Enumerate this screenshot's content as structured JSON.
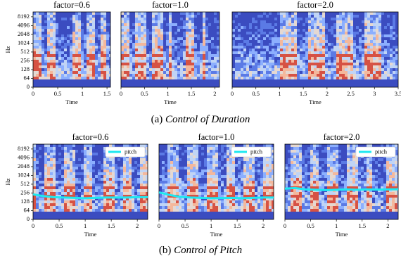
{
  "captions": [
    {
      "label": "(a)",
      "text": "Control of Duration"
    },
    {
      "label": "(b)",
      "text": "Control of Pitch"
    }
  ],
  "chart_data": [
    {
      "type": "spectrogram",
      "title": "factor=0.6",
      "xlabel": "Time",
      "ylabel": "Hz",
      "xlim": [
        0,
        1.57
      ],
      "xticks": [
        0,
        0.5,
        1,
        1.5
      ],
      "ylim": [
        0,
        12000
      ],
      "yticks": [
        0,
        64,
        128,
        256,
        512,
        1024,
        2048,
        4096,
        8192
      ],
      "yscale": "symlog",
      "linthresh": 64
    },
    {
      "type": "spectrogram",
      "title": "factor=1.0",
      "xlabel": "Time",
      "xlim": [
        0,
        2.1
      ],
      "xticks": [
        0,
        0.5,
        1,
        1.5,
        2
      ],
      "ylim": [
        0,
        12000
      ],
      "yscale": "symlog",
      "linthresh": 64
    },
    {
      "type": "spectrogram",
      "title": "factor=2.0",
      "xlabel": "Time",
      "xlim": [
        0,
        3.5
      ],
      "xticks": [
        0,
        0.5,
        1,
        1.5,
        2,
        2.5,
        3,
        3.5
      ],
      "ylim": [
        0,
        12000
      ],
      "yscale": "symlog",
      "linthresh": 64
    },
    {
      "type": "spectrogram",
      "title": "factor=0.6",
      "xlabel": "Time",
      "ylabel": "Hz",
      "xlim": [
        0,
        2.2
      ],
      "xticks": [
        0,
        0.5,
        1,
        1.5,
        2
      ],
      "ylim": [
        0,
        12000
      ],
      "yticks": [
        0,
        64,
        128,
        256,
        512,
        1024,
        2048,
        4096,
        8192
      ],
      "yscale": "symlog",
      "linthresh": 64,
      "legend": "upper right",
      "x": [
        0,
        0.2,
        0.4,
        0.6,
        0.8,
        1.0,
        1.2,
        1.4,
        1.6,
        1.8,
        2.0,
        2.2
      ],
      "series": [
        {
          "name": "pitch",
          "color": "#1ee8f0",
          "values": [
            230,
            200,
            185,
            180,
            175,
            170,
            175,
            180,
            180,
            180,
            185,
            185
          ]
        }
      ]
    },
    {
      "type": "spectrogram",
      "title": "factor=1.0",
      "xlabel": "Time",
      "xlim": [
        0,
        2.2
      ],
      "xticks": [
        0,
        0.5,
        1,
        1.5,
        2
      ],
      "ylim": [
        0,
        12000
      ],
      "yscale": "symlog",
      "linthresh": 64,
      "legend": "upper right",
      "x": [
        0,
        0.2,
        0.4,
        0.6,
        0.8,
        1.0,
        1.2,
        1.4,
        1.6,
        1.8,
        2.0,
        2.2
      ],
      "series": [
        {
          "name": "pitch",
          "color": "#1ee8f0",
          "values": [
            270,
            220,
            190,
            180,
            175,
            170,
            172,
            175,
            170,
            175,
            180,
            180
          ]
        }
      ]
    },
    {
      "type": "spectrogram",
      "title": "factor=2.0",
      "xlabel": "Time",
      "xlim": [
        0,
        2.2
      ],
      "xticks": [
        0,
        0.5,
        1,
        1.5,
        2
      ],
      "ylim": [
        0,
        12000
      ],
      "yscale": "symlog",
      "linthresh": 64,
      "legend": "upper right",
      "x": [
        0,
        0.2,
        0.4,
        0.6,
        0.8,
        1.0,
        1.2,
        1.4,
        1.6,
        1.8,
        2.0,
        2.2
      ],
      "series": [
        {
          "name": "pitch",
          "color": "#1ee8f0",
          "values": [
            360,
            380,
            340,
            330,
            320,
            330,
            340,
            330,
            340,
            335,
            340,
            345
          ]
        }
      ]
    }
  ]
}
